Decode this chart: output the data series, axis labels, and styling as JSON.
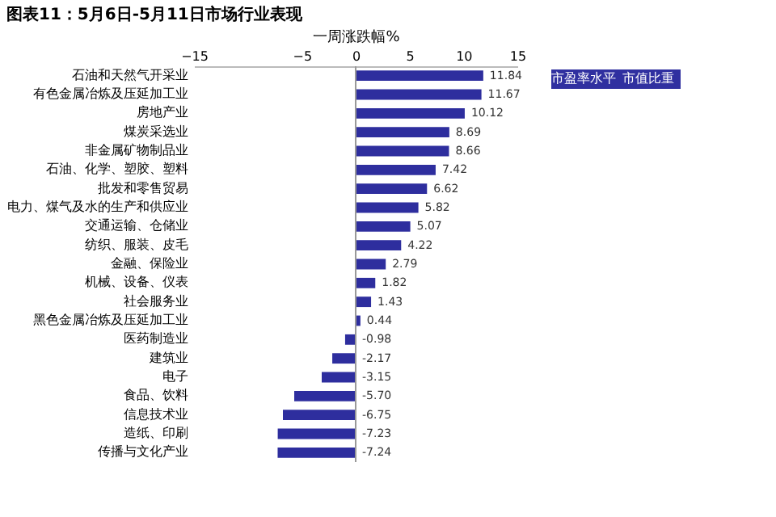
{
  "chart_data": {
    "type": "bar",
    "orientation": "horizontal",
    "title": "图表11：5月6日-5月11日市场行业表现",
    "xlabel": "一周涨跌幅%",
    "categories": [
      "石油和天然气开采业",
      "有色金属冶炼及压延加工业",
      "房地产业",
      "煤炭采选业",
      "非金属矿物制品业",
      "石油、化学、塑胶、塑料",
      "批发和零售贸易",
      "电力、煤气及水的生产和供应业",
      "交通运输、仓储业",
      "纺织、服装、皮毛",
      "金融、保险业",
      "机械、设备、仪表",
      "社会服务业",
      "黑色金属冶炼及压延加工业",
      "医药制造业",
      "建筑业",
      "电子",
      "食品、饮料",
      "信息技术业",
      "造纸、印刷",
      "传播与文化产业"
    ],
    "values": [
      11.84,
      11.67,
      10.12,
      8.69,
      8.66,
      7.42,
      6.62,
      5.82,
      5.07,
      4.22,
      2.79,
      1.82,
      1.43,
      0.44,
      -0.98,
      -2.17,
      -3.15,
      -5.7,
      -6.75,
      -7.23,
      -7.24
    ],
    "color": "#2e2e9e",
    "value_labels": [
      "11.84",
      "11.67",
      "10.12",
      "8.69",
      "8.66",
      "7.42",
      "6.62",
      "5.82",
      "5.07",
      "4.22",
      "2.79",
      "1.82",
      "1.43",
      "0.44",
      "-0.98",
      "-2.17",
      "-3.15",
      "-5.70",
      "-6.75",
      "-7.23",
      "-7.24"
    ],
    "xlim": [
      -15,
      15
    ],
    "xticks": [
      -15,
      -5,
      0,
      5,
      10,
      15
    ],
    "grid": false,
    "ref_lines": [
      {
        "axis": "x",
        "value": 0,
        "color": "#999999"
      }
    ],
    "annotations": [
      "市盈率水平",
      "市值比重"
    ]
  }
}
